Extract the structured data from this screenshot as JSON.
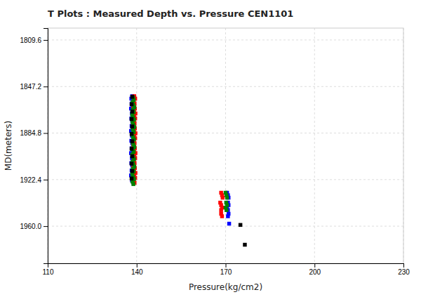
{
  "chart_data": {
    "type": "scatter",
    "title": "T Plots : Measured Depth vs. Pressure CEN1101",
    "x_label": "Pressure(kg/cm2)",
    "y_label": "MD(meters)",
    "xlim": [
      110.0,
      230.0
    ],
    "ylim": [
      1990.0,
      1800.0
    ],
    "xticks": [
      110,
      140,
      170,
      200,
      230
    ],
    "yticks": [
      1809.6,
      1847.2,
      1884.8,
      1922.4,
      {
        "value": 1960,
        "label": "1960.0"
      }
    ],
    "grid": true,
    "marker": "square",
    "series": [
      {
        "color": "blue",
        "x": [
          138.5,
          138.2,
          138.8,
          138.3,
          138.6,
          138.1,
          138.7,
          138.4,
          138.9,
          138.2,
          138.5,
          138.8,
          138.3,
          138.6,
          138.1,
          138.7,
          138.4,
          138.9,
          138.2,
          138.5,
          138.8,
          138.3,
          138.6,
          138.1,
          138.7,
          138.4,
          138.9,
          138.2,
          138.5,
          138.8,
          138.3,
          138.6,
          138.1,
          138.7,
          138.4,
          138.9,
          170.5,
          170.8,
          171.0,
          170.8,
          171.0,
          170.5,
          170.8,
          171.0,
          170.8,
          171.2
        ],
        "values": [
          1855,
          1857,
          1859,
          1861,
          1863,
          1865,
          1867,
          1869,
          1871,
          1873,
          1875,
          1877,
          1879,
          1881,
          1883,
          1885,
          1887,
          1889,
          1891,
          1893,
          1895,
          1897,
          1899,
          1901,
          1903,
          1905,
          1907,
          1909,
          1911,
          1913,
          1915,
          1917,
          1919,
          1921,
          1923,
          1925,
          1933,
          1935,
          1937,
          1941,
          1943,
          1945,
          1947,
          1950,
          1952,
          1958.0
        ]
      },
      {
        "color": "red",
        "x": [
          139.2,
          139.5,
          139.0,
          139.3,
          138.8,
          139.4,
          139.1,
          139.6,
          139.2,
          139.5,
          139.0,
          139.3,
          138.8,
          139.4,
          139.1,
          139.6,
          139.2,
          139.5,
          139.0,
          139.3,
          138.8,
          139.4,
          139.1,
          139.6,
          139.2,
          139.5,
          139.0,
          139.3,
          138.8,
          139.4,
          139.1,
          139.6,
          139.2,
          139.5,
          139.0,
          139.3,
          168.5,
          168.8,
          169.0,
          168.2,
          168.5,
          168.8,
          168.5,
          168.5,
          168.8
        ],
        "values": [
          1855,
          1857,
          1859,
          1861,
          1863,
          1865,
          1867,
          1869,
          1871,
          1873,
          1875,
          1877,
          1879,
          1881,
          1883,
          1885,
          1887,
          1889,
          1891,
          1893,
          1895,
          1897,
          1899,
          1901,
          1903,
          1905,
          1907,
          1909,
          1911,
          1913,
          1915,
          1917,
          1919,
          1921,
          1923,
          1925,
          1933,
          1935,
          1937,
          1941,
          1943,
          1945,
          1947,
          1950,
          1952
        ]
      },
      {
        "color": "green",
        "x": [
          138.8,
          139.0,
          138.6,
          138.9,
          139.2,
          138.7,
          139.0,
          138.5,
          138.8,
          139.1,
          138.6,
          138.9,
          139.2,
          138.7,
          139.0,
          138.5,
          138.8,
          139.1,
          138.6,
          138.9,
          139.2,
          138.7,
          139.0,
          138.5,
          138.8,
          139.1,
          138.6,
          138.9,
          139.2,
          138.7,
          139.0,
          138.5,
          138.8,
          139.1,
          138.6,
          138.9,
          170.0,
          170.3,
          170.5,
          170.2,
          170.5,
          170.0,
          170.3
        ],
        "values": [
          1856,
          1858,
          1860,
          1862,
          1864,
          1866,
          1868,
          1870,
          1872,
          1874,
          1876,
          1878,
          1880,
          1882,
          1884,
          1886,
          1888,
          1890,
          1892,
          1894,
          1896,
          1898,
          1900,
          1902,
          1904,
          1906,
          1908,
          1910,
          1912,
          1914,
          1916,
          1918,
          1920,
          1922,
          1924,
          1926,
          1933,
          1935,
          1937,
          1941,
          1943,
          1945,
          1947
        ]
      },
      {
        "color": "black",
        "x": [
          138.5,
          138.3,
          138.5,
          138.3,
          138.5,
          138.3,
          138.5,
          138.3,
          138.5,
          138.3,
          138.5,
          138.3,
          175.0,
          176.5
        ],
        "values": [
          1855.5,
          1861.5,
          1867.5,
          1873.5,
          1879.5,
          1885.5,
          1891.5,
          1897.5,
          1903.5,
          1909.5,
          1915.5,
          1921.5,
          1959.0,
          1975.0
        ]
      }
    ]
  }
}
